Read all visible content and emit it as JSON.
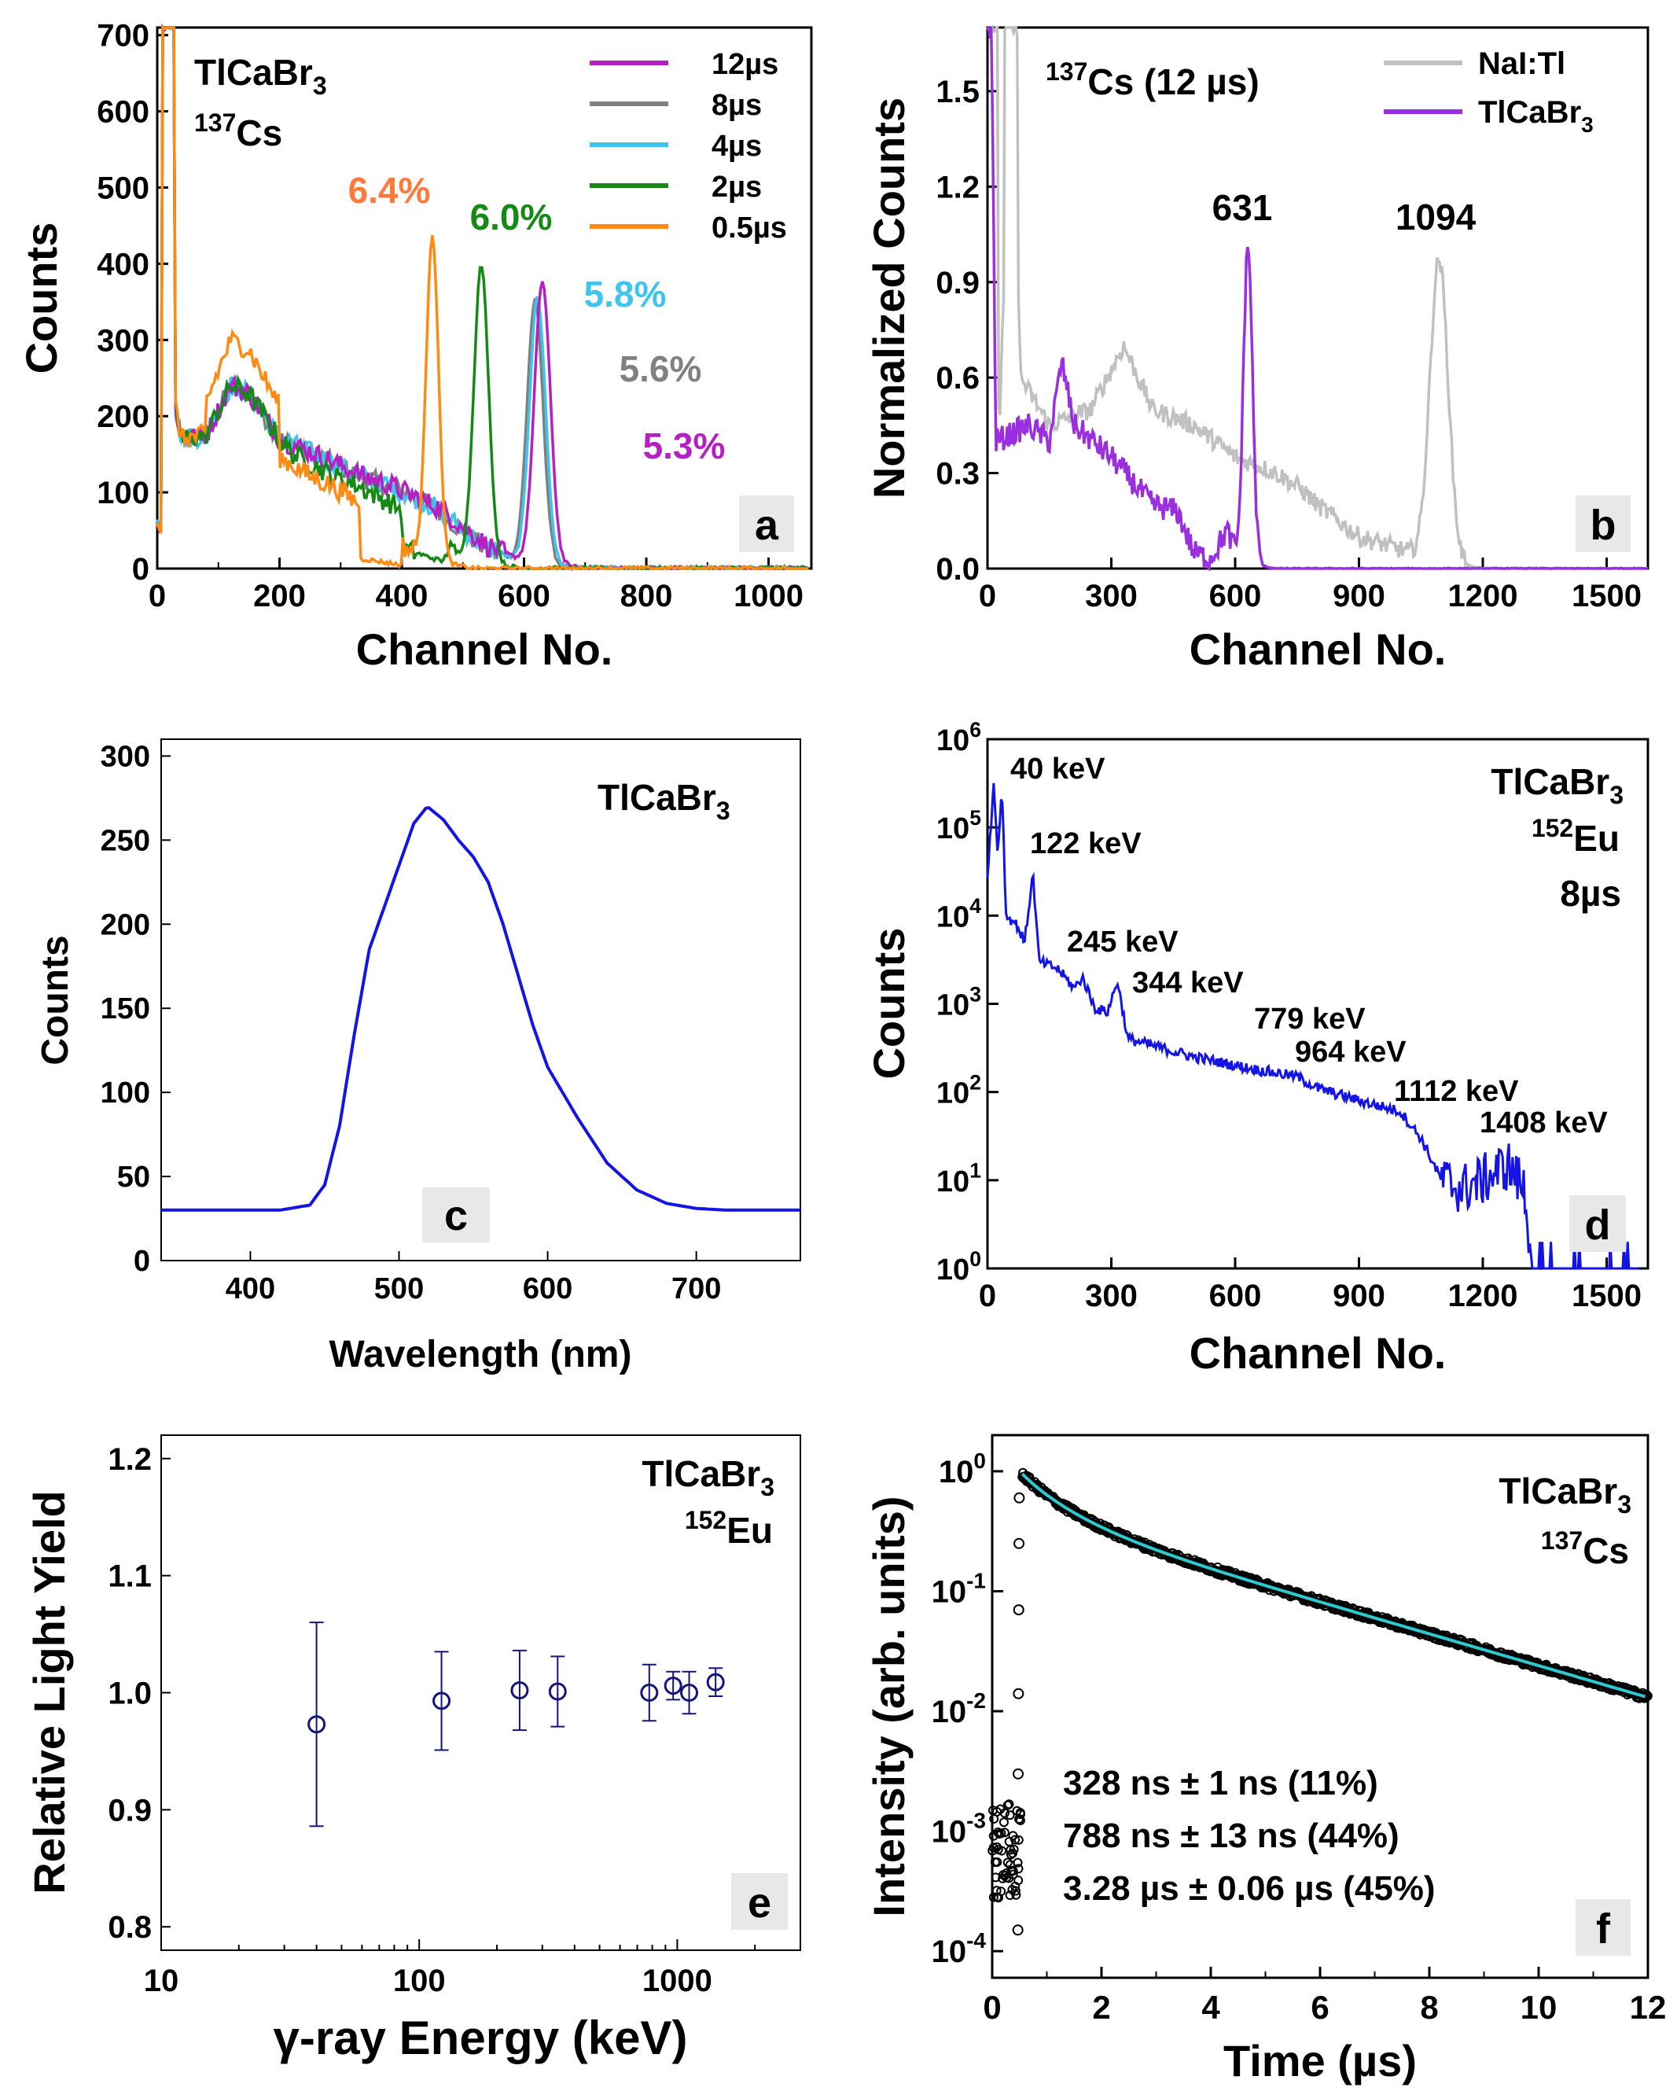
{
  "chart_data": [
    {
      "panel": "a",
      "type": "line",
      "sample": "TlCaBr3",
      "isotope": "137Cs",
      "xlabel": "Channel No.",
      "ylabel": "Counts",
      "xlim": [
        0,
        1070
      ],
      "ylim": [
        0,
        710
      ],
      "xticks": [
        0,
        200,
        400,
        600,
        800,
        1000
      ],
      "yticks": [
        0,
        100,
        200,
        300,
        400,
        500,
        600,
        700
      ],
      "legend_position": "top-right",
      "series": [
        {
          "name": "12µs",
          "color": "#b61fc4",
          "peak_channel": 630,
          "peak_counts": 370,
          "resolution": "5.3%"
        },
        {
          "name": "8µs",
          "color": "#808080",
          "peak_channel": 618,
          "peak_counts": 345,
          "resolution": "5.6%"
        },
        {
          "name": "4µs",
          "color": "#3ec4ee",
          "peak_channel": 622,
          "peak_counts": 350,
          "resolution": "5.8%"
        },
        {
          "name": "2µs",
          "color": "#148a14",
          "peak_channel": 530,
          "peak_counts": 390,
          "resolution": "6.0%"
        },
        {
          "name": "0.5µs",
          "color": "#ff8a14",
          "peak_channel": 450,
          "peak_counts": 430,
          "resolution": "6.4%"
        }
      ],
      "annotations": [
        "6.4%",
        "6.0%",
        "5.8%",
        "5.6%",
        "5.3%"
      ]
    },
    {
      "panel": "b",
      "type": "line",
      "title": "137Cs (12 µs)",
      "xlabel": "Channel No.",
      "ylabel": "Normalized Counts",
      "xlim": [
        0,
        1600
      ],
      "ylim": [
        0,
        1.7
      ],
      "xticks": [
        0,
        300,
        600,
        900,
        1200,
        1500
      ],
      "yticks": [
        0.0,
        0.3,
        0.6,
        0.9,
        1.2,
        1.5
      ],
      "series": [
        {
          "name": "NaI:Tl",
          "color": "#c0c0c0",
          "peak_channel": 1094
        },
        {
          "name": "TlCaBr3",
          "color": "#9a2fe0",
          "peak_channel": 631
        }
      ],
      "peak_labels": [
        "631",
        "1094"
      ]
    },
    {
      "panel": "c",
      "type": "line",
      "label": "TlCaBr3",
      "xlabel": "Wavelength (nm)",
      "ylabel": "Counts",
      "xlim": [
        340,
        770
      ],
      "ylim": [
        0,
        310
      ],
      "xticks": [
        400,
        500,
        600,
        700
      ],
      "yticks": [
        0,
        50,
        100,
        150,
        200,
        250,
        300
      ],
      "peak_wavelength_nm": 519,
      "peak_counts": 270,
      "x": [
        340,
        420,
        440,
        450,
        460,
        470,
        480,
        490,
        500,
        510,
        519,
        530,
        540,
        550,
        560,
        570,
        580,
        590,
        600,
        620,
        640,
        660,
        680,
        700,
        720,
        770
      ],
      "y": [
        30,
        30,
        33,
        45,
        80,
        135,
        185,
        210,
        235,
        260,
        270,
        262,
        250,
        240,
        225,
        200,
        170,
        140,
        115,
        85,
        58,
        42,
        34,
        31,
        30,
        30
      ],
      "color": "#1414e6"
    },
    {
      "panel": "d",
      "type": "line",
      "sample": "TlCaBr3",
      "isotope": "152Eu",
      "shaping": "8µs",
      "xlabel": "Channel No.",
      "ylabel": "Counts",
      "yscale": "log",
      "xlim": [
        0,
        1600
      ],
      "ylim": [
        1,
        1000000
      ],
      "xticks": [
        0,
        300,
        600,
        900,
        1200,
        1500
      ],
      "yticks": [
        "10^0",
        "10^1",
        "10^2",
        "10^3",
        "10^4",
        "10^5",
        "10^6"
      ],
      "peak_labels": [
        "40 keV",
        "122 keV",
        "245 keV",
        "344 keV",
        "779 keV",
        "964 keV",
        "1112 keV",
        "1408 keV"
      ],
      "color": "#1414e6"
    },
    {
      "panel": "e",
      "type": "scatter",
      "sample": "TlCaBr3",
      "isotope": "152Eu",
      "xlabel": "γ-ray Energy (keV)",
      "ylabel": "Relative Light Yield",
      "xscale": "log",
      "xlim": [
        10,
        3000
      ],
      "ylim": [
        0.78,
        1.22
      ],
      "xticks": [
        10,
        100,
        1000
      ],
      "yticks": [
        0.8,
        0.9,
        1.0,
        1.1,
        1.2
      ],
      "x": [
        40,
        122,
        245,
        344,
        779,
        964,
        1112,
        1408
      ],
      "y": [
        0.973,
        0.993,
        1.002,
        1.001,
        1.0,
        1.006,
        1.0,
        1.009
      ],
      "err": [
        0.087,
        0.042,
        0.034,
        0.03,
        0.024,
        0.012,
        0.018,
        0.012
      ],
      "color": "#14147a"
    },
    {
      "panel": "f",
      "type": "scatter",
      "sample": "TlCaBr3",
      "isotope": "137Cs",
      "xlabel": "Time (µs)",
      "ylabel": "Intensity (arb. units)",
      "yscale": "log",
      "xlim": [
        0,
        12
      ],
      "ylim": [
        6e-05,
        2
      ],
      "xticks": [
        0,
        2,
        4,
        6,
        8,
        10,
        12
      ],
      "yticks": [
        "10^-4",
        "10^-3",
        "10^-2",
        "10^-1",
        "10^0"
      ],
      "fit_components": [
        {
          "tau_us": 0.328,
          "fraction": 0.11
        },
        {
          "tau_us": 0.788,
          "fraction": 0.44
        },
        {
          "tau_us": 3.28,
          "fraction": 0.45
        }
      ],
      "fit_labels": [
        "328 ns ± 1 ns (11%)",
        "788 ns ± 13 ns (44%)",
        "3.28 µs ± 0.06 µs (45%)"
      ],
      "data_color": "#000000",
      "fit_color": "#2ec8d0"
    }
  ],
  "panel_letters": [
    "a",
    "b",
    "c",
    "d",
    "e",
    "f"
  ]
}
